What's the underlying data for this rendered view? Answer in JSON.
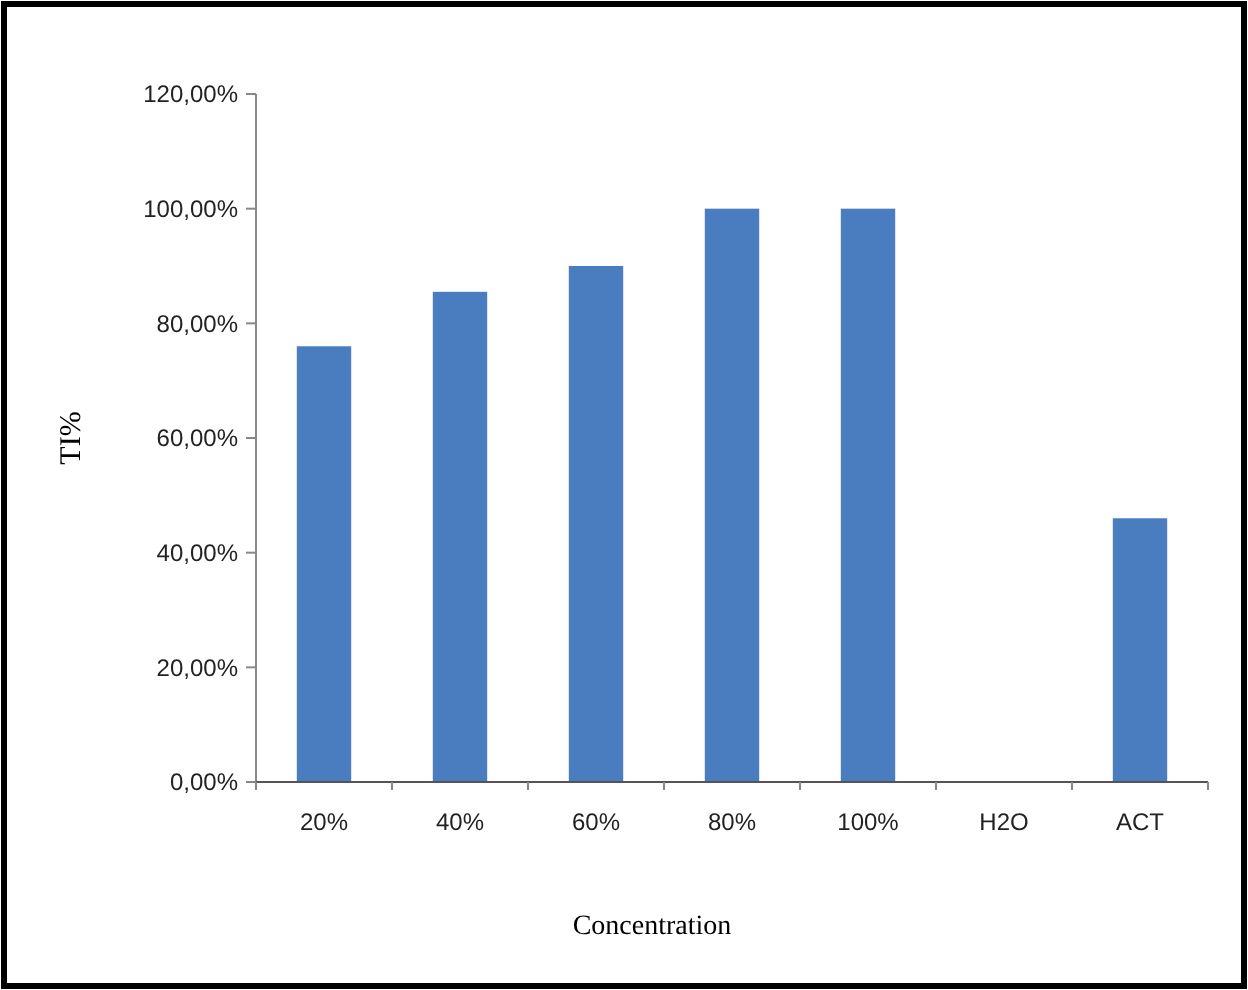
{
  "chart_data": {
    "type": "bar",
    "xlabel": "Concentration",
    "ylabel": "TI%",
    "categories": [
      "20%",
      "40%",
      "60%",
      "80%",
      "100%",
      "H2O",
      "ACT"
    ],
    "values": [
      76,
      85.5,
      90,
      100,
      100,
      0,
      46
    ],
    "color": "#4a7cc0",
    "ylim": [
      0,
      120
    ],
    "yticks": [
      {
        "value": 0,
        "label": "0,00%"
      },
      {
        "value": 20,
        "label": "20,00%"
      },
      {
        "value": 40,
        "label": "40,00%"
      },
      {
        "value": 60,
        "label": "60,00%"
      },
      {
        "value": 80,
        "label": "80,00%"
      },
      {
        "value": 100,
        "label": "100,00%"
      },
      {
        "value": 120,
        "label": "120,00%"
      }
    ],
    "grid": false
  }
}
